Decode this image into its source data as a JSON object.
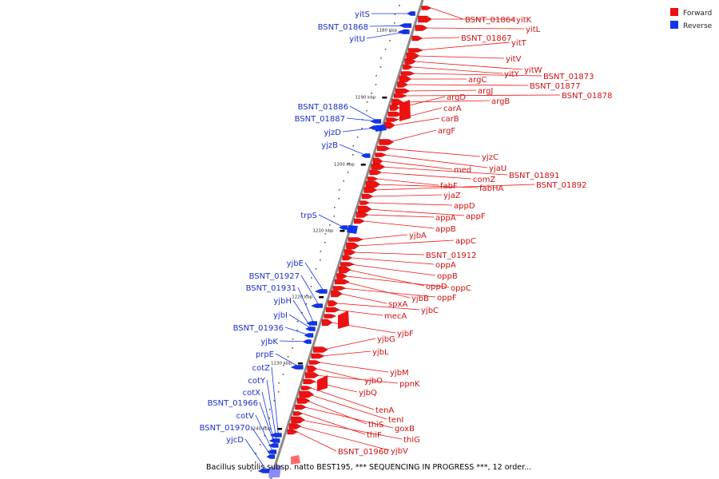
{
  "caption": "Bacillus subtilis subsp. natto BEST195, *** SEQUENCING IN PROGRESS ***, 12 order...",
  "legend": {
    "forward_label": "Forward",
    "reverse_label": "Reverse",
    "forward_color": "#ee1111",
    "reverse_color": "#1133ee"
  },
  "ticks": [
    "1180 kbp",
    "1190 kbp",
    "1200 kbp",
    "1210 kbp",
    "1220 kbp",
    "1230 kbp",
    "1240 kbp"
  ],
  "forward_genes": [
    "BSNT_01864",
    "yitK",
    "yitL",
    "BSNT_01867",
    "yitT",
    "yitV",
    "yitW",
    "yitY",
    "BSNT_01873",
    "argC",
    "BSNT_01877",
    "argJ",
    "BSNT_01878",
    "argB",
    "argD",
    "carA",
    "carB",
    "argF",
    "yjzC",
    "yjaU",
    "med",
    "BSNT_01891",
    "comZ",
    "fabF",
    "fabHA",
    "BSNT_01892",
    "yjaZ",
    "appD",
    "appF",
    "appA",
    "appB",
    "yjbA",
    "appC",
    "BSNT_01912",
    "oppA",
    "oppB",
    "oppD",
    "oppC",
    "yjbB",
    "oppF",
    "spxA",
    "yjbC",
    "mecA",
    "yjbF",
    "yjbG",
    "yjbL",
    "yjbM",
    "yjbO",
    "ppnK",
    "yjbQ",
    "tenA",
    "tenI",
    "thiS",
    "goxB",
    "thiF",
    "thiG",
    "yjbV",
    "BSNT_01960"
  ],
  "reverse_genes": [
    "yitS",
    "BSNT_01868",
    "yitU",
    "BSNT_01886",
    "BSNT_01887",
    "yjzD",
    "yjzB",
    "trpS",
    "yjbE",
    "BSNT_01927",
    "BSNT_01931",
    "yjbH",
    "yjbI",
    "BSNT_01936",
    "yjbK",
    "prpE",
    "cotZ",
    "cotY",
    "cotX",
    "BSNT_01966",
    "cotV",
    "BSNT_01970",
    "yjcD"
  ]
}
